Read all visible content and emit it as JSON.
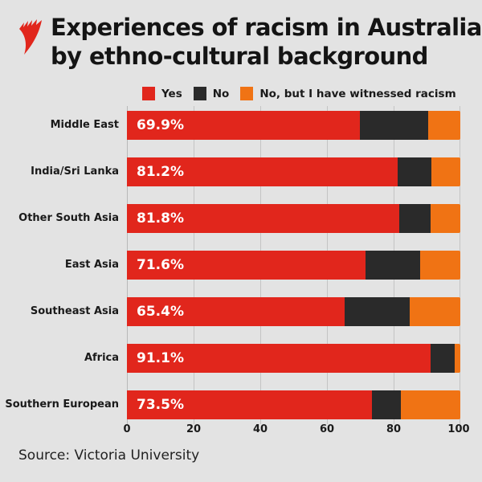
{
  "header": {
    "logo": "sbs-logo-icon",
    "title_line1": "Experiences of racism in Australia",
    "title_line2": "by ethno-cultural background"
  },
  "legend": [
    {
      "label": "Yes",
      "color": "#e1261c"
    },
    {
      "label": "No",
      "color": "#2a2a2a"
    },
    {
      "label": "No, but I have witnessed racism",
      "color": "#f07314"
    }
  ],
  "rows": [
    {
      "label": "Middle East",
      "yes": 69.9,
      "no": 20.5,
      "witnessed": 9.6,
      "yes_label": "69.9%"
    },
    {
      "label": "India/Sri Lanka",
      "yes": 81.2,
      "no": 10.1,
      "witnessed": 8.7,
      "yes_label": "81.2%"
    },
    {
      "label": "Other South Asia",
      "yes": 81.8,
      "no": 9.2,
      "witnessed": 9.0,
      "yes_label": "81.8%"
    },
    {
      "label": "East Asia",
      "yes": 71.6,
      "no": 16.3,
      "witnessed": 12.1,
      "yes_label": "71.6%"
    },
    {
      "label": "Southeast Asia",
      "yes": 65.4,
      "no": 19.3,
      "witnessed": 15.3,
      "yes_label": "65.4%"
    },
    {
      "label": "Africa",
      "yes": 91.1,
      "no": 7.2,
      "witnessed": 1.7,
      "yes_label": "91.1%"
    },
    {
      "label": "Southern European",
      "yes": 73.5,
      "no": 8.7,
      "witnessed": 17.8,
      "yes_label": "73.5%"
    }
  ],
  "axis": {
    "ticks": [
      "0",
      "20",
      "40",
      "60",
      "80",
      "100"
    ]
  },
  "footer": {
    "source": "Source: Victoria University"
  },
  "chart_data": {
    "type": "bar",
    "orientation": "horizontal",
    "stacked": true,
    "title": "Experiences of racism in Australia by ethno-cultural background",
    "categories": [
      "Middle East",
      "India/Sri Lanka",
      "Other South Asia",
      "East Asia",
      "Southeast Asia",
      "Africa",
      "Southern European"
    ],
    "series": [
      {
        "name": "Yes",
        "color": "#e1261c",
        "values": [
          69.9,
          81.2,
          81.8,
          71.6,
          65.4,
          91.1,
          73.5
        ]
      },
      {
        "name": "No",
        "color": "#2a2a2a",
        "values": [
          20.5,
          10.1,
          9.2,
          16.3,
          19.3,
          7.2,
          8.7
        ]
      },
      {
        "name": "No, but I have witnessed racism",
        "color": "#f07314",
        "values": [
          9.6,
          8.7,
          9.0,
          12.1,
          15.3,
          1.7,
          17.8
        ]
      }
    ],
    "xlabel": "",
    "ylabel": "",
    "xlim": [
      0,
      100
    ],
    "xticks": [
      0,
      20,
      40,
      60,
      80,
      100
    ],
    "grid": true,
    "legend_position": "top",
    "annotations": [
      "Source: Victoria University"
    ]
  }
}
